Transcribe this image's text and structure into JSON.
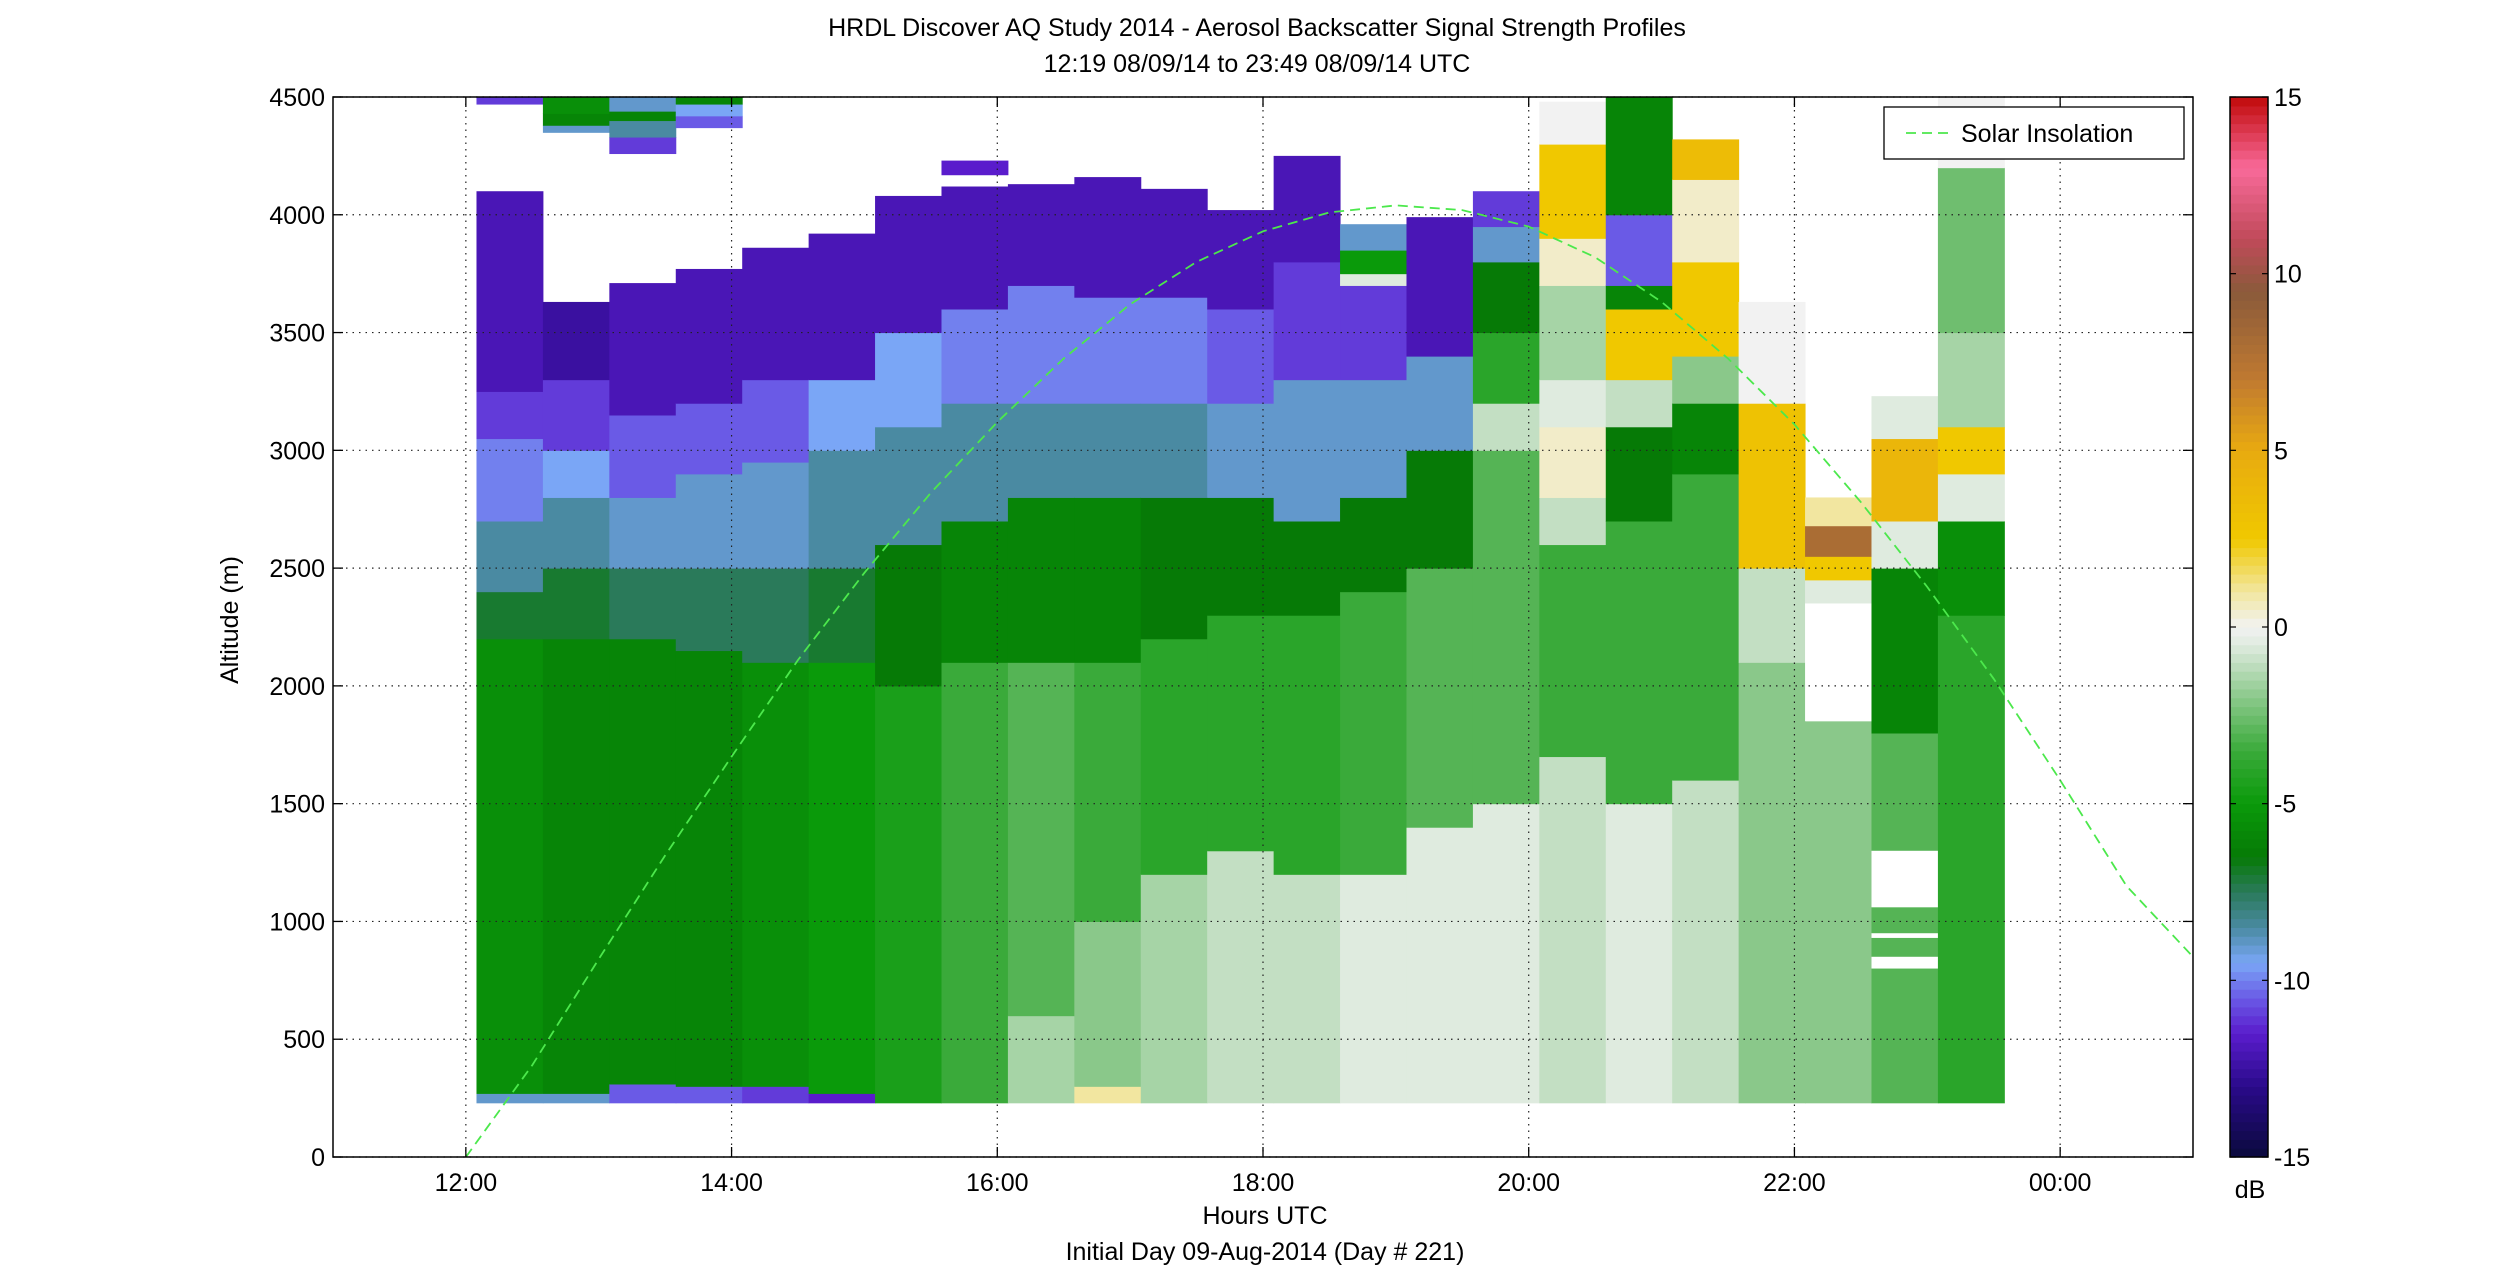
{
  "chart_data": {
    "type": "heatmap",
    "title": "HRDL Discover AQ Study 2014 - Aerosol Backscatter Signal Strength Profiles",
    "subtitle": "12:19 08/09/14 to 23:49 08/09/14  UTC",
    "xlabel": "Hours UTC",
    "xlabel2": "Initial Day 09-Aug-2014 (Day # 221)",
    "ylabel": "Altitude (m)",
    "x_unit": "hours UTC",
    "xlim": [
      11.0,
      25.0
    ],
    "ylim": [
      0,
      4500
    ],
    "x_tick_values": [
      12,
      14,
      16,
      18,
      20,
      22,
      24
    ],
    "x_tick_labels": [
      "12:00",
      "14:00",
      "16:00",
      "18:00",
      "20:00",
      "22:00",
      "00:00"
    ],
    "y_tick_values": [
      0,
      500,
      1000,
      1500,
      2000,
      2500,
      3000,
      3500,
      4000,
      4500
    ],
    "y_tick_labels": [
      "0",
      "500",
      "1000",
      "1500",
      "2000",
      "2500",
      "3000",
      "3500",
      "4000",
      "4500"
    ],
    "grid": true,
    "legend": {
      "placement": "top-right",
      "entries": [
        "Solar Insolation"
      ]
    },
    "colorbar": {
      "unit": "dB",
      "range": [
        -15,
        15
      ],
      "tick_values": [
        -15,
        -10,
        -5,
        0,
        5,
        10,
        15
      ],
      "tick_labels": [
        "-15",
        "-10",
        "-5",
        "0",
        "5",
        "10",
        "15"
      ],
      "colormap": [
        [
          -15,
          "#0a0a3c"
        ],
        [
          -13,
          "#2a0a8a"
        ],
        [
          -11.5,
          "#5a1ccc"
        ],
        [
          -10.5,
          "#6a5ae6"
        ],
        [
          -9.5,
          "#7aa6f6"
        ],
        [
          -8.5,
          "#4a8aa2"
        ],
        [
          -7.5,
          "#2a7a5a"
        ],
        [
          -6.5,
          "#067a06"
        ],
        [
          -5,
          "#0a9a0a"
        ],
        [
          -3.5,
          "#3aaa3a"
        ],
        [
          -2,
          "#8ac88a"
        ],
        [
          -0.5,
          "#dfebdf"
        ],
        [
          0,
          "#f2f2f2"
        ],
        [
          1,
          "#f2e6a0"
        ],
        [
          2.5,
          "#f0c800"
        ],
        [
          5,
          "#e8aa10"
        ],
        [
          7,
          "#c07a30"
        ],
        [
          9.5,
          "#8a5a3a"
        ],
        [
          11,
          "#c04a5a"
        ],
        [
          13,
          "#f86a9a"
        ],
        [
          15,
          "#c00a0a"
        ]
      ]
    },
    "series": [
      {
        "name": "Solar Insolation",
        "style": "dashed",
        "color": "#4ce84c",
        "x": [
          12.0,
          12.5,
          13.0,
          13.5,
          14.0,
          14.5,
          15.0,
          15.5,
          16.0,
          16.5,
          17.0,
          17.5,
          18.0,
          18.5,
          19.0,
          19.5,
          20.0,
          20.5,
          21.0,
          21.5,
          22.0,
          22.5,
          23.0,
          23.5,
          24.0,
          24.5,
          25.0
        ],
        "y": [
          0,
          390,
          840,
          1280,
          1700,
          2110,
          2480,
          2820,
          3120,
          3390,
          3620,
          3800,
          3930,
          4010,
          4040,
          4020,
          3950,
          3820,
          3630,
          3390,
          3110,
          2780,
          2420,
          2030,
          1600,
          1150,
          850
        ]
      }
    ],
    "profiles": [
      {
        "t": 12.33,
        "top": 4480,
        "cap": [
          4470,
          4500,
          -11
        ],
        "bins": [
          [
            230,
            270,
            -9
          ],
          [
            270,
            2200,
            -5.5
          ],
          [
            2200,
            2400,
            -7
          ],
          [
            2400,
            2700,
            -8.5
          ],
          [
            2700,
            3050,
            -10
          ],
          [
            3050,
            3250,
            -11
          ],
          [
            3250,
            4100,
            -12
          ]
        ]
      },
      {
        "t": 12.83,
        "top": 3630,
        "caps": [
          [
            4350,
            4380,
            -9
          ],
          [
            4380,
            4430,
            -6
          ],
          [
            4430,
            4500,
            -5.5
          ]
        ],
        "bins": [
          [
            230,
            270,
            -9
          ],
          [
            270,
            2200,
            -6
          ],
          [
            2200,
            2500,
            -7
          ],
          [
            2500,
            2800,
            -8.5
          ],
          [
            2800,
            3000,
            -9.5
          ],
          [
            3000,
            3300,
            -11
          ],
          [
            3300,
            3630,
            -12.5
          ]
        ]
      },
      {
        "t": 13.33,
        "top": 3710,
        "caps": [
          [
            4260,
            4330,
            -11
          ],
          [
            4330,
            4400,
            -8.5
          ],
          [
            4400,
            4440,
            -6
          ],
          [
            4440,
            4500,
            -9
          ]
        ],
        "bins": [
          [
            230,
            310,
            -10.5
          ],
          [
            310,
            2200,
            -6
          ],
          [
            2200,
            2500,
            -7.5
          ],
          [
            2500,
            2800,
            -9
          ],
          [
            2800,
            3150,
            -10.5
          ],
          [
            3150,
            3710,
            -12
          ]
        ]
      },
      {
        "t": 13.83,
        "top": 3770,
        "caps": [
          [
            4370,
            4420,
            -10.5
          ],
          [
            4420,
            4470,
            -9.5
          ],
          [
            4470,
            4500,
            -6
          ]
        ],
        "bins": [
          [
            230,
            300,
            -10.5
          ],
          [
            300,
            2150,
            -6
          ],
          [
            2150,
            2500,
            -7.5
          ],
          [
            2500,
            2900,
            -9
          ],
          [
            2900,
            3200,
            -10.5
          ],
          [
            3200,
            3770,
            -12
          ]
        ]
      },
      {
        "t": 14.33,
        "top": 3860,
        "bins": [
          [
            230,
            300,
            -11
          ],
          [
            300,
            2100,
            -5.5
          ],
          [
            2100,
            2500,
            -7.5
          ],
          [
            2500,
            2950,
            -9
          ],
          [
            2950,
            3300,
            -10.5
          ],
          [
            3300,
            3860,
            -12
          ]
        ]
      },
      {
        "t": 14.83,
        "top": 3920,
        "bins": [
          [
            230,
            270,
            -11.5
          ],
          [
            270,
            2100,
            -5
          ],
          [
            2100,
            2500,
            -7
          ],
          [
            2500,
            3000,
            -8.5
          ],
          [
            3000,
            3300,
            -9.5
          ],
          [
            3300,
            3920,
            -12
          ]
        ]
      },
      {
        "t": 15.33,
        "top": 4080,
        "bins": [
          [
            230,
            2000,
            -4.5
          ],
          [
            2000,
            2600,
            -6.5
          ],
          [
            2600,
            3100,
            -8.5
          ],
          [
            3100,
            3500,
            -9.5
          ],
          [
            3500,
            4080,
            -12
          ]
        ]
      },
      {
        "t": 15.83,
        "top": 4120,
        "caps": [
          [
            4170,
            4230,
            -11.5
          ]
        ],
        "bins": [
          [
            230,
            2100,
            -3.5
          ],
          [
            2100,
            2700,
            -6
          ],
          [
            2700,
            3200,
            -8.5
          ],
          [
            3200,
            3600,
            -10
          ],
          [
            3600,
            4120,
            -12
          ]
        ]
      },
      {
        "t": 16.33,
        "top": 4130,
        "bins": [
          [
            230,
            600,
            -1.5
          ],
          [
            600,
            2100,
            -3
          ],
          [
            2100,
            2800,
            -6
          ],
          [
            2800,
            3200,
            -8.5
          ],
          [
            3200,
            3700,
            -10
          ],
          [
            3700,
            4130,
            -12
          ]
        ]
      },
      {
        "t": 16.83,
        "top": 4160,
        "bins": [
          [
            230,
            300,
            1
          ],
          [
            300,
            1000,
            -2
          ],
          [
            1000,
            2100,
            -3.5
          ],
          [
            2100,
            2800,
            -6
          ],
          [
            2800,
            3200,
            -8.5
          ],
          [
            3200,
            3650,
            -10
          ],
          [
            3650,
            4160,
            -12
          ]
        ]
      },
      {
        "t": 17.33,
        "top": 4110,
        "bins": [
          [
            230,
            1200,
            -1.5
          ],
          [
            1200,
            2200,
            -4
          ],
          [
            2200,
            2800,
            -6.5
          ],
          [
            2800,
            3200,
            -8.5
          ],
          [
            3200,
            3650,
            -10
          ],
          [
            3650,
            4110,
            -12
          ]
        ]
      },
      {
        "t": 17.83,
        "top": 4020,
        "bins": [
          [
            230,
            1300,
            -1
          ],
          [
            1300,
            2300,
            -4
          ],
          [
            2300,
            2800,
            -6.5
          ],
          [
            2800,
            3200,
            -9
          ],
          [
            3200,
            3600,
            -10.5
          ],
          [
            3600,
            4020,
            -12
          ]
        ]
      },
      {
        "t": 18.33,
        "top": 4250,
        "bins": [
          [
            230,
            1200,
            -1
          ],
          [
            1200,
            2300,
            -4
          ],
          [
            2300,
            2700,
            -6.5
          ],
          [
            2700,
            3300,
            -9
          ],
          [
            3300,
            3800,
            -11
          ],
          [
            3800,
            4250,
            -12
          ]
        ]
      },
      {
        "t": 18.83,
        "top": 3960,
        "bins": [
          [
            230,
            1200,
            -0.5
          ],
          [
            1200,
            2400,
            -3.5
          ],
          [
            2400,
            2800,
            -6.5
          ],
          [
            2800,
            3300,
            -9
          ],
          [
            3300,
            3700,
            -11
          ],
          [
            3700,
            3750,
            -0.5
          ],
          [
            3750,
            3850,
            -5
          ],
          [
            3850,
            3960,
            -9
          ]
        ]
      },
      {
        "t": 19.33,
        "top": 3990,
        "bins": [
          [
            230,
            1400,
            -0.5
          ],
          [
            1400,
            2500,
            -3
          ],
          [
            2500,
            3000,
            -6.5
          ],
          [
            3000,
            3400,
            -9
          ],
          [
            3400,
            3990,
            -12
          ]
        ]
      },
      {
        "t": 19.83,
        "top": 4100,
        "bins": [
          [
            230,
            1500,
            -0.5
          ],
          [
            1500,
            3000,
            -3
          ],
          [
            3000,
            3200,
            -1
          ],
          [
            3200,
            3500,
            -4
          ],
          [
            3500,
            3800,
            -6.5
          ],
          [
            3800,
            3950,
            -9
          ],
          [
            3950,
            4100,
            -11
          ]
        ]
      },
      {
        "t": 20.33,
        "top": 4480,
        "bins": [
          [
            230,
            1700,
            -1
          ],
          [
            1700,
            2600,
            -3.5
          ],
          [
            2600,
            2800,
            -1
          ],
          [
            2800,
            3100,
            0.5
          ],
          [
            3100,
            3300,
            -0.5
          ],
          [
            3300,
            3700,
            -1.5
          ],
          [
            3700,
            3900,
            0.5
          ],
          [
            3900,
            4300,
            2.5
          ],
          [
            4300,
            4480,
            0
          ]
        ]
      },
      {
        "t": 20.83,
        "top": 4500,
        "bins": [
          [
            230,
            1500,
            -0.5
          ],
          [
            1500,
            2700,
            -3.5
          ],
          [
            2700,
            3100,
            -6.5
          ],
          [
            3100,
            3300,
            -1
          ],
          [
            3300,
            3600,
            2.5
          ],
          [
            3600,
            3700,
            -6
          ],
          [
            3700,
            4000,
            -10.5
          ],
          [
            4000,
            4500,
            -6
          ]
        ]
      },
      {
        "t": 21.33,
        "top": 4320,
        "bins": [
          [
            230,
            1600,
            -1
          ],
          [
            1600,
            2900,
            -3.5
          ],
          [
            2900,
            3200,
            -6
          ],
          [
            3200,
            3400,
            -2
          ],
          [
            3400,
            3800,
            2.5
          ],
          [
            3800,
            4150,
            0.5
          ],
          [
            4150,
            4320,
            3.5
          ]
        ]
      },
      {
        "t": 21.83,
        "top": 3630,
        "bins": [
          [
            230,
            2100,
            -2
          ],
          [
            2100,
            2500,
            -1
          ],
          [
            2500,
            3200,
            3
          ],
          [
            3200,
            3630,
            0
          ]
        ]
      },
      {
        "t": 22.33,
        "top": 2800,
        "gaps": [
          [
            1850,
            2350
          ]
        ],
        "bins": [
          [
            230,
            1850,
            -2
          ],
          [
            2350,
            2450,
            -0.5
          ],
          [
            2450,
            2550,
            2.5
          ],
          [
            2550,
            2680,
            8
          ],
          [
            2680,
            2800,
            1
          ]
        ]
      },
      {
        "t": 22.83,
        "top": 3230,
        "gaps": [
          [
            800,
            850
          ],
          [
            930,
            950
          ],
          [
            1060,
            1300
          ]
        ],
        "bins": [
          [
            230,
            1800,
            -3
          ],
          [
            1800,
            2500,
            -6
          ],
          [
            2500,
            2700,
            -0.5
          ],
          [
            2700,
            3050,
            4
          ],
          [
            3050,
            3230,
            -0.5
          ]
        ]
      },
      {
        "t": 23.33,
        "top": 4500,
        "bins": [
          [
            230,
            2300,
            -4
          ],
          [
            2300,
            2700,
            -5.5
          ],
          [
            2700,
            2900,
            -0.5
          ],
          [
            2900,
            3100,
            2.5
          ],
          [
            3100,
            3500,
            -1.5
          ],
          [
            3500,
            4200,
            -2.5
          ],
          [
            4200,
            4500,
            0
          ]
        ]
      }
    ]
  }
}
